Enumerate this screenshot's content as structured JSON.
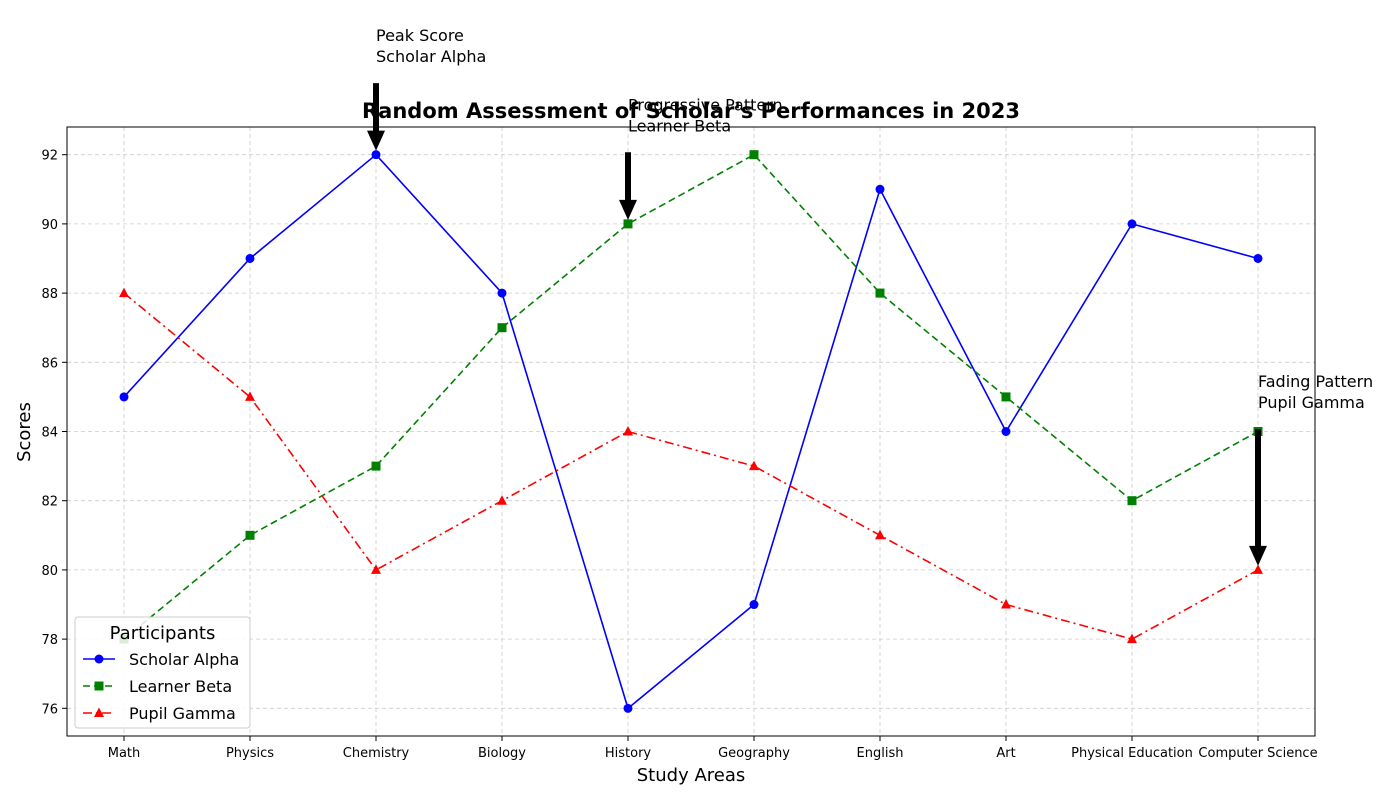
{
  "chart_data": {
    "type": "line",
    "title": "Random Assessment of Scholar's Performances in 2023",
    "xlabel": "Study Areas",
    "ylabel": "Scores",
    "categories": [
      "Math",
      "Physics",
      "Chemistry",
      "Biology",
      "History",
      "Geography",
      "English",
      "Art",
      "Physical Education",
      "Computer Science"
    ],
    "ylim": [
      75.2,
      92.8
    ],
    "yticks": [
      76,
      78,
      80,
      82,
      84,
      86,
      88,
      90,
      92
    ],
    "grid": true,
    "legend": {
      "title": "Participants",
      "placement": "lower-left"
    },
    "series": [
      {
        "name": "Scholar Alpha",
        "values": [
          85,
          89,
          92,
          88,
          76,
          79,
          91,
          84,
          90,
          89
        ],
        "color": "#0000ff",
        "marker": "circle",
        "dash": "solid"
      },
      {
        "name": "Learner Beta",
        "values": [
          78,
          81,
          83,
          87,
          90,
          92,
          88,
          85,
          82,
          84
        ],
        "color": "#008000",
        "marker": "square",
        "dash": "dashed"
      },
      {
        "name": "Pupil Gamma",
        "values": [
          88,
          85,
          80,
          82,
          84,
          83,
          81,
          79,
          78,
          80
        ],
        "color": "#ff0000",
        "marker": "triangle",
        "dash": "dashdot"
      }
    ],
    "annotations": [
      {
        "lines": [
          "Peak Score",
          "Scholar Alpha"
        ],
        "category": "Chemistry",
        "target_y": 92,
        "text_y": 94.3
      },
      {
        "lines": [
          "Progressive Pattern",
          "Learner Beta"
        ],
        "category": "History",
        "target_y": 90,
        "text_y": 92.3
      },
      {
        "lines": [
          "Fading Pattern",
          "Pupil Gamma"
        ],
        "category": "Computer Science",
        "target_y": 80,
        "text_y": 84.3
      }
    ]
  }
}
